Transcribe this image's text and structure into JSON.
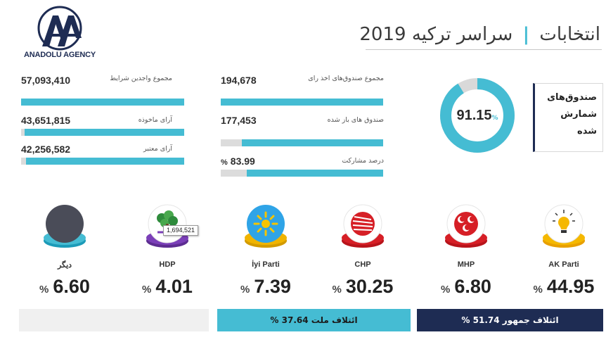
{
  "header": {
    "logo_text": "ANADOLU AGENCY",
    "title_year": "2019",
    "title_word": "انتخابات",
    "title_scope": "سراسر ترکیه",
    "title_separator": "|"
  },
  "stats_left": [
    {
      "value": "57,093,410",
      "label": "مجموع واجدین\nشرایط",
      "fill": 1.0
    },
    {
      "value": "43,651,815",
      "label": "آرای ماخوذه",
      "fill": 0.98
    },
    {
      "value": "42,256,582",
      "label": "آرای معتبر",
      "fill": 0.97
    }
  ],
  "stats_mid": [
    {
      "value": "194,678",
      "label": "مجموع صندوق‌های\nاخذ رای",
      "fill": 1.0
    },
    {
      "value": "177,453",
      "label": "صندوق های باز\nشده",
      "fill": 0.87
    },
    {
      "value": "83.99",
      "value_prefix": "%",
      "label": "درصد مشارکت",
      "fill": 0.84
    }
  ],
  "donut": {
    "percent": 91.15,
    "value_text": "91.15",
    "unit": "%",
    "label": "صندوق‌های\nشمارش\nشده",
    "color_fill": "#45bcd3",
    "color_rest": "#d9d9d9"
  },
  "parties": [
    {
      "name": "AK Parti",
      "pct": "44.95",
      "unit": "%",
      "icon": "lightbulb-icon"
    },
    {
      "name": "MHP",
      "pct": "6.80",
      "unit": "%",
      "icon": "crescents-icon"
    },
    {
      "name": "CHP",
      "pct": "30.25",
      "unit": "%",
      "icon": "six-arrows-icon"
    },
    {
      "name": "İyi Parti",
      "pct": "7.39",
      "unit": "%",
      "icon": "sun-icon"
    },
    {
      "name": "HDP",
      "pct": "4.01",
      "unit": "%",
      "icon": "tree-icon"
    },
    {
      "name": "دیگر",
      "pct": "6.60",
      "unit": "%",
      "icon": "gray-circle-icon"
    }
  ],
  "tooltip": {
    "text": "1,694,521"
  },
  "alliances": {
    "cumhur": {
      "label": "ائتلاف جمهور",
      "pct": "51.74",
      "unit": "%"
    },
    "millet": {
      "label": "ائتلاف ملت",
      "pct": "37.64",
      "unit": "%"
    }
  },
  "colors": {
    "accent": "#45bcd3",
    "navy": "#1e2c53",
    "bar_bg": "#dcdcdc"
  }
}
